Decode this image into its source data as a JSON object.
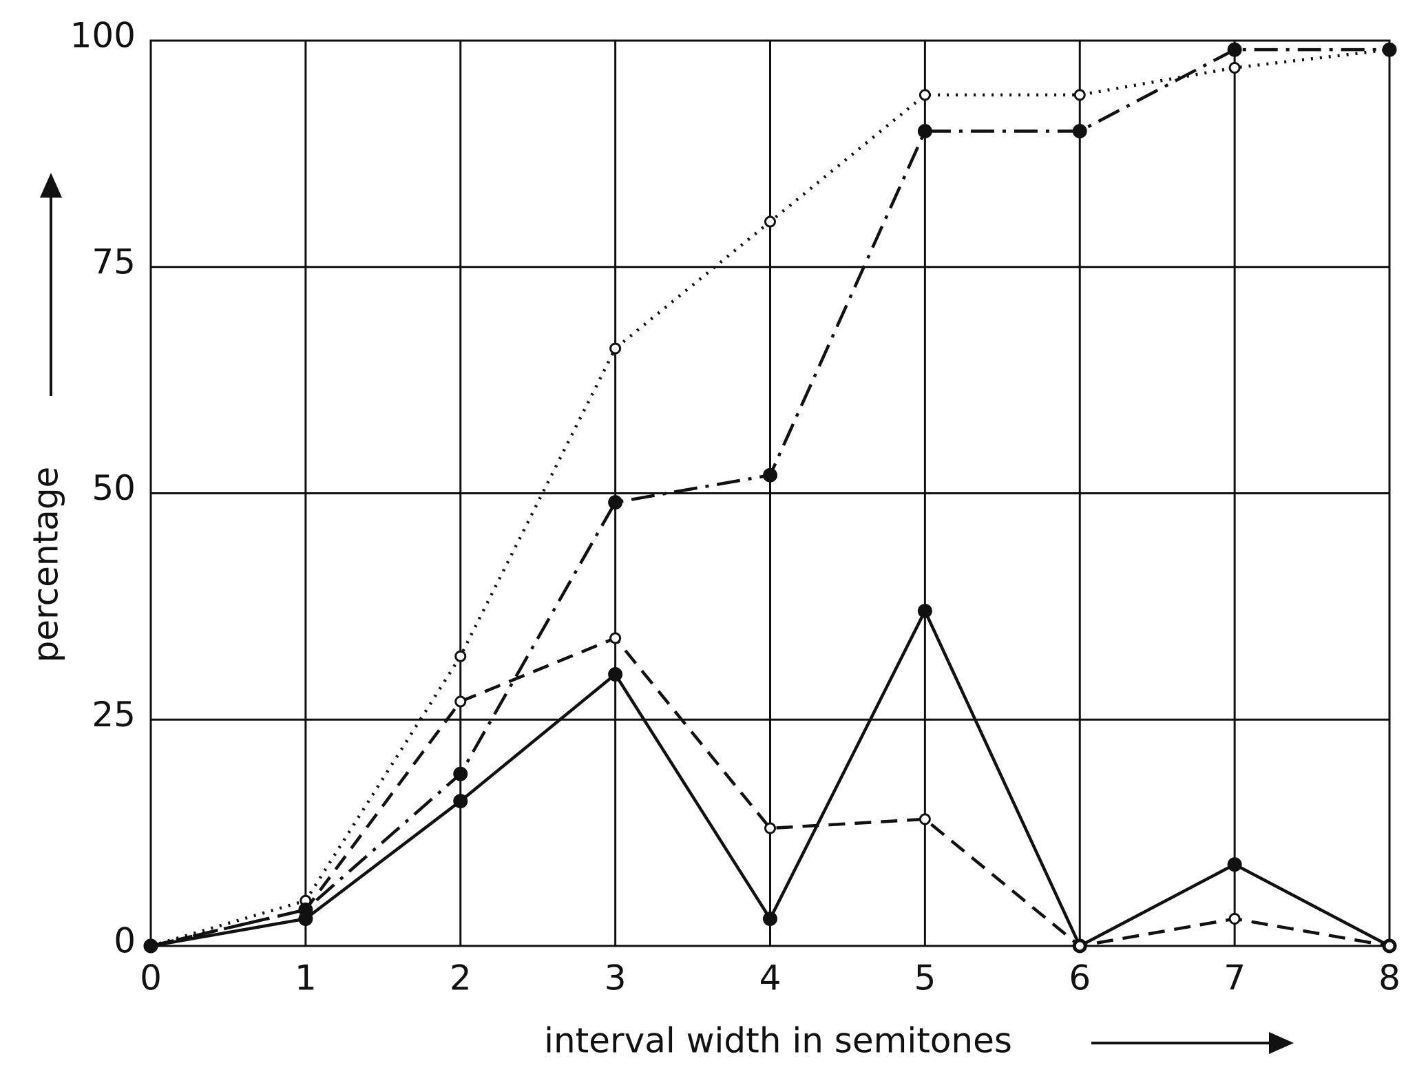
{
  "chart_data": {
    "type": "line",
    "xlabel": "interval width  in semitones",
    "ylabel": "percentage",
    "x": [
      0,
      1,
      2,
      3,
      4,
      5,
      6,
      7,
      8
    ],
    "xlim": [
      0,
      8
    ],
    "xticks": [
      0,
      1,
      2,
      3,
      4,
      5,
      6,
      7,
      8
    ],
    "ylim": [
      0,
      100
    ],
    "yticks": [
      0,
      25,
      50,
      75,
      100
    ],
    "grid": true,
    "series": [
      {
        "color": "#111111",
        "dash": "solid",
        "marker": "filled",
        "values": [
          0,
          3,
          16,
          30,
          3,
          37,
          0,
          9,
          0
        ]
      },
      {
        "color": "#111111",
        "dash": "dashed",
        "marker": "open",
        "values": [
          0,
          4,
          27,
          34,
          13,
          14,
          0,
          3,
          0
        ]
      },
      {
        "color": "#111111",
        "dash": "dotted",
        "marker": "open",
        "values": [
          0,
          5,
          32,
          66,
          80,
          94,
          94,
          97,
          99
        ]
      },
      {
        "color": "#111111",
        "dash": "dashdot",
        "marker": "filled",
        "values": [
          0,
          4,
          19,
          49,
          52,
          90,
          90,
          99,
          99
        ]
      }
    ]
  }
}
